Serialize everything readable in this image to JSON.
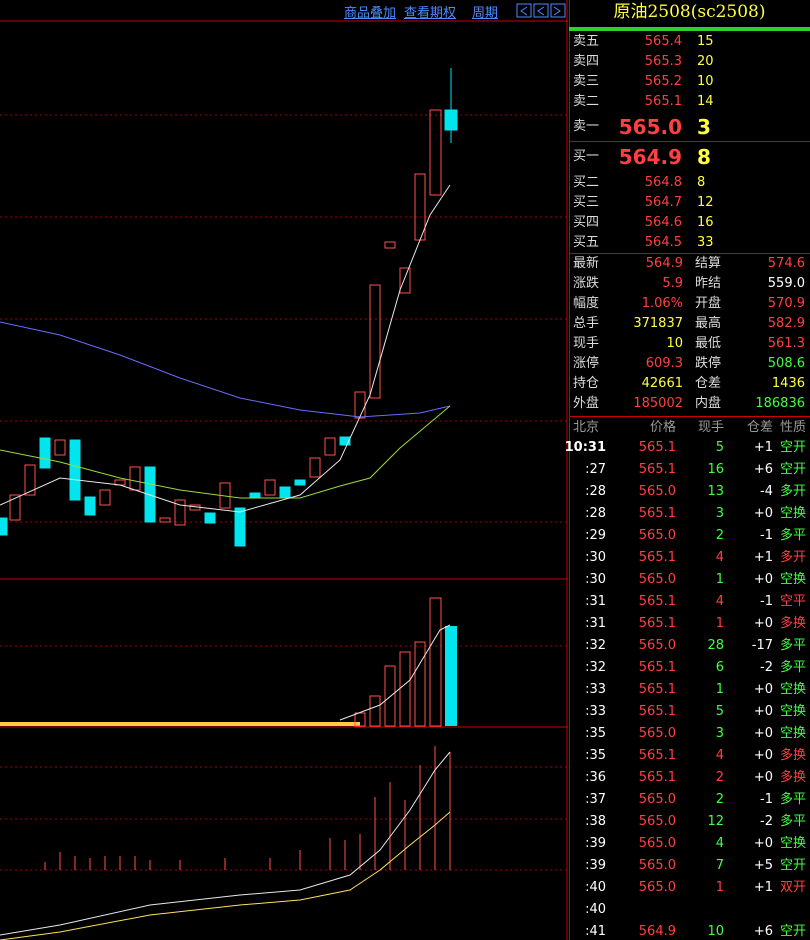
{
  "toolbar": {
    "links": [
      "商品叠加",
      "查看期权",
      "周期"
    ]
  },
  "quote": {
    "title": "原油2508(sc2508)",
    "asks": [
      {
        "label": "卖五",
        "price": "565.4",
        "volume": "15"
      },
      {
        "label": "卖四",
        "price": "565.3",
        "volume": "20"
      },
      {
        "label": "卖三",
        "price": "565.2",
        "volume": "10"
      },
      {
        "label": "卖二",
        "price": "565.1",
        "volume": "14"
      },
      {
        "label": "卖一",
        "price": "565.0",
        "volume": "3"
      }
    ],
    "bids": [
      {
        "label": "买一",
        "price": "564.9",
        "volume": "8"
      },
      {
        "label": "买二",
        "price": "564.8",
        "volume": "8"
      },
      {
        "label": "买三",
        "price": "564.7",
        "volume": "12"
      },
      {
        "label": "买四",
        "price": "564.6",
        "volume": "16"
      },
      {
        "label": "买五",
        "price": "564.5",
        "volume": "33"
      }
    ],
    "stats": [
      [
        {
          "label": "最新",
          "value": "564.9",
          "color": "#ff4040"
        },
        {
          "label": "结算",
          "value": "574.6",
          "color": "#ff4040"
        }
      ],
      [
        {
          "label": "涨跌",
          "value": "5.9",
          "color": "#ff4040"
        },
        {
          "label": "昨结",
          "value": "559.0",
          "color": "#ffffff"
        }
      ],
      [
        {
          "label": "幅度",
          "value": "1.06%",
          "color": "#ff4040"
        },
        {
          "label": "开盘",
          "value": "570.9",
          "color": "#ff4040"
        }
      ],
      [
        {
          "label": "总手",
          "value": "371837",
          "color": "#ffff40"
        },
        {
          "label": "最高",
          "value": "582.9",
          "color": "#ff4040"
        }
      ],
      [
        {
          "label": "现手",
          "value": "10",
          "color": "#ffff40"
        },
        {
          "label": "最低",
          "value": "561.3",
          "color": "#ff4040"
        }
      ],
      [
        {
          "label": "涨停",
          "value": "609.3",
          "color": "#ff4040"
        },
        {
          "label": "跌停",
          "value": "508.6",
          "color": "#40ff40"
        }
      ],
      [
        {
          "label": "持仓",
          "value": "42661",
          "color": "#ffff40"
        },
        {
          "label": "仓差",
          "value": "1436",
          "color": "#ffff40"
        }
      ],
      [
        {
          "label": "外盘",
          "value": "185002",
          "color": "#ff4040"
        },
        {
          "label": "内盘",
          "value": "186836",
          "color": "#40ff40"
        }
      ]
    ]
  },
  "ticks": {
    "header": [
      "北京",
      "价格",
      "现手",
      "仓差",
      "性质"
    ],
    "rows": [
      {
        "time": "10:31",
        "price": "565.1",
        "volume": "5",
        "change": "+1",
        "type": "空开",
        "color": "#40ff40"
      },
      {
        "time": ":27",
        "price": "565.1",
        "volume": "16",
        "change": "+6",
        "type": "空开",
        "color": "#40ff40"
      },
      {
        "time": ":28",
        "price": "565.0",
        "volume": "13",
        "change": "-4",
        "type": "多开",
        "color": "#40ff40"
      },
      {
        "time": ":28",
        "price": "565.1",
        "volume": "3",
        "change": "+0",
        "type": "空换",
        "color": "#40ff40"
      },
      {
        "time": ":29",
        "price": "565.0",
        "volume": "2",
        "change": "-1",
        "type": "多平",
        "color": "#40ff40"
      },
      {
        "time": ":30",
        "price": "565.1",
        "volume": "4",
        "change": "+1",
        "type": "多开",
        "color": "#ff4040"
      },
      {
        "time": ":30",
        "price": "565.0",
        "volume": "1",
        "change": "+0",
        "type": "空换",
        "color": "#40ff40"
      },
      {
        "time": ":31",
        "price": "565.1",
        "volume": "4",
        "change": "-1",
        "type": "空平",
        "color": "#ff4040"
      },
      {
        "time": ":31",
        "price": "565.1",
        "volume": "1",
        "change": "+0",
        "type": "多换",
        "color": "#ff4040"
      },
      {
        "time": ":32",
        "price": "565.0",
        "volume": "28",
        "change": "-17",
        "type": "多平",
        "color": "#40ff40"
      },
      {
        "time": ":32",
        "price": "565.1",
        "volume": "6",
        "change": "-2",
        "type": "多平",
        "color": "#40ff40"
      },
      {
        "time": ":33",
        "price": "565.1",
        "volume": "1",
        "change": "+0",
        "type": "空换",
        "color": "#40ff40"
      },
      {
        "time": ":33",
        "price": "565.1",
        "volume": "5",
        "change": "+0",
        "type": "空换",
        "color": "#40ff40"
      },
      {
        "time": ":35",
        "price": "565.0",
        "volume": "3",
        "change": "+0",
        "type": "空换",
        "color": "#40ff40"
      },
      {
        "time": ":35",
        "price": "565.1",
        "volume": "4",
        "change": "+0",
        "type": "多换",
        "color": "#ff4040"
      },
      {
        "time": ":36",
        "price": "565.1",
        "volume": "2",
        "change": "+0",
        "type": "多换",
        "color": "#ff4040"
      },
      {
        "time": ":37",
        "price": "565.0",
        "volume": "2",
        "change": "-1",
        "type": "多平",
        "color": "#40ff40"
      },
      {
        "time": ":38",
        "price": "565.0",
        "volume": "12",
        "change": "-2",
        "type": "多平",
        "color": "#40ff40"
      },
      {
        "time": ":39",
        "price": "565.0",
        "volume": "4",
        "change": "+0",
        "type": "空换",
        "color": "#40ff40"
      },
      {
        "time": ":39",
        "price": "565.0",
        "volume": "7",
        "change": "+5",
        "type": "空开",
        "color": "#40ff40"
      },
      {
        "time": ":40",
        "price": "565.0",
        "volume": "1",
        "change": "+1",
        "type": "双开",
        "color": "#ff4040"
      },
      {
        "time": ":40"
      },
      {
        "time": ":41",
        "price": "564.9",
        "volume": "10",
        "change": "+6",
        "type": "空开",
        "color": "#40ff40"
      }
    ]
  }
}
